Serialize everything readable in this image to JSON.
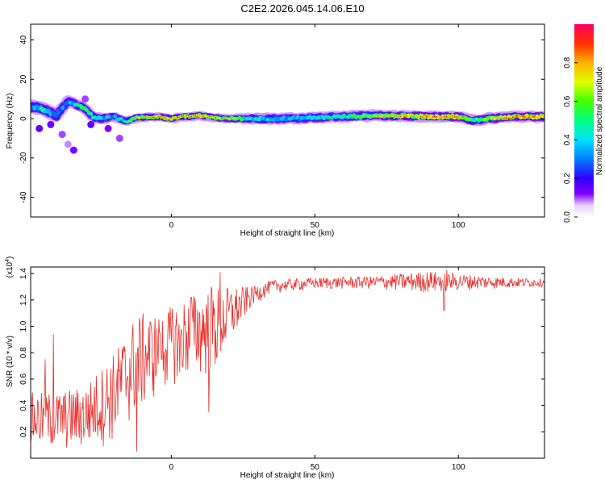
{
  "title": "C2E2.2026.045.14.06.E10",
  "chart_data": [
    {
      "type": "heatmap",
      "name": "spectrogram",
      "xlabel": "Height of straight line (km)",
      "ylabel": "Frequency (Hz)",
      "xlim": [
        -49,
        130
      ],
      "ylim": [
        -50,
        48
      ],
      "xticks": [
        0,
        50,
        100
      ],
      "yticks": [
        -40,
        -20,
        0,
        20,
        40
      ],
      "ridge": [
        {
          "x": -48,
          "f": 6.0,
          "amp": 0.45,
          "w": 5
        },
        {
          "x": -44,
          "f": 4.5,
          "amp": 0.55,
          "w": 5
        },
        {
          "x": -40,
          "f": 1.5,
          "amp": 0.4,
          "w": 5
        },
        {
          "x": -36,
          "f": 9.0,
          "amp": 0.45,
          "w": 4
        },
        {
          "x": -33,
          "f": 7.0,
          "amp": 0.55,
          "w": 4
        },
        {
          "x": -30,
          "f": 5.0,
          "amp": 0.6,
          "w": 4
        },
        {
          "x": -27,
          "f": 0.5,
          "amp": 0.55,
          "w": 4
        },
        {
          "x": -24,
          "f": 0.0,
          "amp": 0.5,
          "w": 4
        },
        {
          "x": -20,
          "f": 1.0,
          "amp": 0.45,
          "w": 3
        },
        {
          "x": -16,
          "f": -1.5,
          "amp": 0.55,
          "w": 3
        },
        {
          "x": -12,
          "f": 0.5,
          "amp": 0.75,
          "w": 3
        },
        {
          "x": -5,
          "f": 1.0,
          "amp": 0.85,
          "w": 3
        },
        {
          "x": 0,
          "f": 0.0,
          "amp": 0.8,
          "w": 3
        },
        {
          "x": 5,
          "f": 1.0,
          "amp": 0.85,
          "w": 3
        },
        {
          "x": 10,
          "f": 1.5,
          "amp": 0.85,
          "w": 3
        },
        {
          "x": 15,
          "f": 0.5,
          "amp": 0.8,
          "w": 3
        },
        {
          "x": 20,
          "f": 0.0,
          "amp": 0.75,
          "w": 3
        },
        {
          "x": 30,
          "f": 0.0,
          "amp": 0.5,
          "w": 4
        },
        {
          "x": 40,
          "f": 0.0,
          "amp": 0.45,
          "w": 4
        },
        {
          "x": 50,
          "f": 0.5,
          "amp": 0.5,
          "w": 4
        },
        {
          "x": 60,
          "f": 1.0,
          "amp": 0.55,
          "w": 4
        },
        {
          "x": 70,
          "f": 1.5,
          "amp": 0.65,
          "w": 4
        },
        {
          "x": 80,
          "f": 1.5,
          "amp": 0.8,
          "w": 4
        },
        {
          "x": 90,
          "f": 1.0,
          "amp": 0.85,
          "w": 4
        },
        {
          "x": 100,
          "f": 1.0,
          "amp": 0.85,
          "w": 4
        },
        {
          "x": 105,
          "f": -1.0,
          "amp": 0.6,
          "w": 4
        },
        {
          "x": 110,
          "f": 0.0,
          "amp": 0.7,
          "w": 4
        },
        {
          "x": 120,
          "f": 1.0,
          "amp": 0.9,
          "w": 4
        },
        {
          "x": 130,
          "f": 1.0,
          "amp": 0.85,
          "w": 4
        }
      ],
      "scattered_blobs": [
        {
          "x": -42,
          "f": -3,
          "amp": 0.15
        },
        {
          "x": -38,
          "f": -8,
          "amp": 0.1
        },
        {
          "x": -34,
          "f": -16,
          "amp": 0.12
        },
        {
          "x": -46,
          "f": -5,
          "amp": 0.15
        },
        {
          "x": -28,
          "f": -3,
          "amp": 0.15
        },
        {
          "x": -22,
          "f": -5,
          "amp": 0.12
        },
        {
          "x": -18,
          "f": -10,
          "amp": 0.1
        },
        {
          "x": -36,
          "f": -13,
          "amp": 0.08
        },
        {
          "x": -30,
          "f": 10,
          "amp": 0.1
        }
      ],
      "colorbar": {
        "label": "Normalized spectral amplitude",
        "range": [
          0.0,
          1.0
        ],
        "ticks": [
          "0.0",
          "0.2",
          "0.4",
          "0.6",
          "0.8"
        ]
      }
    },
    {
      "type": "line",
      "name": "snr",
      "xlabel": "Height of straight line (km)",
      "ylabel": "SNR (10 * v/v)",
      "scale_label": "(x10",
      "scale_exp": "4",
      "xlim": [
        -49,
        130
      ],
      "ylim": [
        0.0,
        1.45
      ],
      "xticks": [
        0,
        50,
        100
      ],
      "yticks": [
        0.2,
        0.4,
        0.6,
        0.8,
        1.0,
        1.2,
        1.4
      ],
      "color": "#e8302c",
      "trend": [
        {
          "x": -49,
          "lo": 0.05,
          "hi": 0.5
        },
        {
          "x": -40,
          "lo": 0.05,
          "hi": 0.5
        },
        {
          "x": -30,
          "lo": 0.05,
          "hi": 0.55
        },
        {
          "x": -20,
          "lo": 0.1,
          "hi": 0.8
        },
        {
          "x": -12,
          "lo": 0.3,
          "hi": 1.1
        },
        {
          "x": -5,
          "lo": 0.45,
          "hi": 1.1
        },
        {
          "x": 0,
          "lo": 0.55,
          "hi": 1.15
        },
        {
          "x": 8,
          "lo": 0.6,
          "hi": 1.25
        },
        {
          "x": 15,
          "lo": 0.6,
          "hi": 1.3
        },
        {
          "x": 22,
          "lo": 0.9,
          "hi": 1.3
        },
        {
          "x": 28,
          "lo": 1.15,
          "hi": 1.3
        },
        {
          "x": 35,
          "lo": 1.25,
          "hi": 1.35
        },
        {
          "x": 50,
          "lo": 1.28,
          "hi": 1.37
        },
        {
          "x": 70,
          "lo": 1.28,
          "hi": 1.38
        },
        {
          "x": 90,
          "lo": 1.25,
          "hi": 1.42
        },
        {
          "x": 110,
          "lo": 1.28,
          "hi": 1.38
        },
        {
          "x": 130,
          "lo": 1.3,
          "hi": 1.36
        }
      ],
      "spikes": [
        {
          "x": -41,
          "y": 0.94
        },
        {
          "x": -44,
          "y": 0.75
        },
        {
          "x": -12,
          "y": 0.05
        },
        {
          "x": -4,
          "y": 0.95
        },
        {
          "x": 3,
          "y": 0.65
        },
        {
          "x": 7,
          "y": 1.22
        },
        {
          "x": 13,
          "y": 0.35
        },
        {
          "x": 17,
          "y": 1.41
        },
        {
          "x": 14,
          "y": 1.3
        },
        {
          "x": 95,
          "y": 1.12
        },
        {
          "x": 96,
          "y": 1.43
        }
      ]
    }
  ]
}
